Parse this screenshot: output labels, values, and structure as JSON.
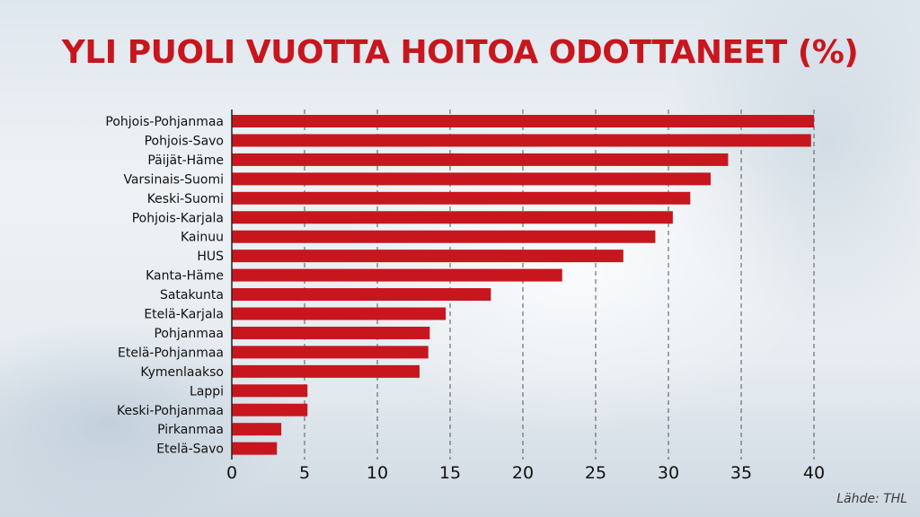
{
  "chart_data": {
    "type": "bar",
    "orientation": "horizontal",
    "title": "YLI PUOLI VUOTTA HOITOA ODOTTANEET (%)",
    "categories": [
      "Pohjois-Pohjanmaa",
      "Pohjois-Savo",
      "Päijät-Häme",
      "Varsinais-Suomi",
      "Keski-Suomi",
      "Pohjois-Karjala",
      "Kainuu",
      "HUS",
      "Kanta-Häme",
      "Satakunta",
      "Etelä-Karjala",
      "Pohjanmaa",
      "Etelä-Pohjanmaa",
      "Kymenlaakso",
      "Lappi",
      "Keski-Pohjanmaa",
      "Pirkanmaa",
      "Etelä-Savo"
    ],
    "values": [
      40.0,
      39.8,
      34.1,
      32.9,
      31.5,
      30.3,
      29.1,
      26.9,
      22.7,
      17.8,
      14.7,
      13.6,
      13.5,
      12.9,
      5.2,
      5.2,
      3.4,
      3.1
    ],
    "xlim": [
      0,
      40
    ],
    "xticks": [
      "0",
      "5",
      "10",
      "15",
      "20",
      "25",
      "30",
      "35",
      "40"
    ],
    "grid": "vertical dashed",
    "bar_color": "#c8161e"
  },
  "source": "Lähde: THL"
}
